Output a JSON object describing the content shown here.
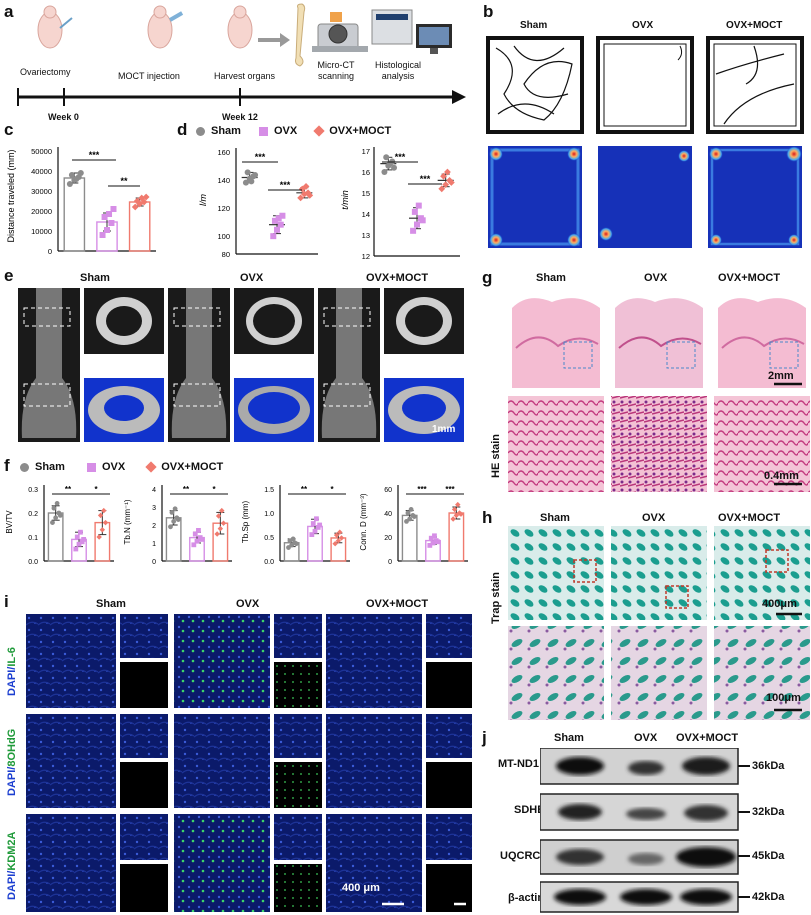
{
  "panels": {
    "a": {
      "letter": "a",
      "steps": [
        "Ovariectomy",
        "MOCT injection",
        "Harvest organs",
        "Micro-CT scanning",
        "Histological analysis"
      ],
      "weeks": [
        "Week 0",
        "Week 12"
      ]
    },
    "b": {
      "letter": "b",
      "groups": [
        "Sham",
        "OVX",
        "OVX+MOCT"
      ]
    },
    "c": {
      "letter": "c",
      "ylabel": "Distance traveled (mm)",
      "yticks": [
        "50000",
        "40000",
        "30000",
        "20000",
        "10000",
        "0"
      ],
      "sig": [
        "***",
        "**"
      ]
    },
    "d": {
      "letter": "d",
      "legend": [
        "Sham",
        "OVX",
        "OVX+MOCT"
      ],
      "left_ylabel": "l/m",
      "left_yticks": [
        "160",
        "140",
        "120",
        "100",
        "80"
      ],
      "right_ylabel": "t/min",
      "right_yticks": [
        "17",
        "16",
        "15",
        "14",
        "13",
        "12"
      ],
      "sig": [
        "***",
        "***",
        "***",
        "***"
      ]
    },
    "e": {
      "letter": "e",
      "groups": [
        "Sham",
        "OVX",
        "OVX+MOCT"
      ],
      "scale": "1mm"
    },
    "f": {
      "letter": "f",
      "legend": [
        "Sham",
        "OVX",
        "OVX+MOCT"
      ],
      "plots": [
        {
          "ylabel": "BV/TV",
          "yticks": [
            "0.3",
            "0.2",
            "0.1",
            "0.0"
          ],
          "sig": [
            "**",
            "*"
          ]
        },
        {
          "ylabel": "Tb.N (mm⁻¹)",
          "yticks": [
            "4",
            "3",
            "2",
            "1",
            "0"
          ],
          "sig": [
            "**",
            "*"
          ]
        },
        {
          "ylabel": "Tb.Sp (mm)",
          "yticks": [
            "1.5",
            "1.0",
            "0.5",
            "0.0"
          ],
          "sig": [
            "**",
            "*"
          ]
        },
        {
          "ylabel": "Conn. D (mm⁻³)",
          "yticks": [
            "60",
            "40",
            "20",
            "0"
          ],
          "sig": [
            "***",
            "***"
          ]
        }
      ]
    },
    "g": {
      "letter": "g",
      "groups": [
        "Sham",
        "OVX",
        "OVX+MOCT"
      ],
      "side_label": "HE stain",
      "scale_top": "2mm",
      "scale_bottom": "0.4mm"
    },
    "h": {
      "letter": "h",
      "groups": [
        "Sham",
        "OVX",
        "OVX+MOCT"
      ],
      "side_label": "Trap stain",
      "scale_top": "400μm",
      "scale_bottom": "100μm"
    },
    "i": {
      "letter": "i",
      "groups": [
        "Sham",
        "OVX",
        "OVX+MOCT"
      ],
      "row_labels": [
        {
          "prefix": "DAPI/",
          "marker": "IL-6"
        },
        {
          "prefix": "DAPI/",
          "marker": "8OHdG"
        },
        {
          "prefix": "DAPI/",
          "marker": "KDM2A"
        }
      ],
      "scale": "400 μm"
    },
    "j": {
      "letter": "j",
      "groups": [
        "Sham",
        "OVX",
        "OVX+MOCT"
      ],
      "rows": [
        {
          "protein": "MT-ND1",
          "kda": "36kDa"
        },
        {
          "protein": "SDHB",
          "kda": "32kDa"
        },
        {
          "protein": "UQCRC1",
          "kda": "45kDa"
        },
        {
          "protein": "β-actin",
          "kda": "42kDa"
        }
      ]
    }
  },
  "colors": {
    "sham": "#8c8c8c",
    "ovx": "#d68ee6",
    "moct": "#f07a6e"
  },
  "chart_data": [
    {
      "type": "scatter",
      "panel": "c",
      "categories": [
        "Sham",
        "OVX",
        "OVX+MOCT"
      ],
      "ylabel": "Distance traveled (mm)",
      "ylim": [
        0,
        50000
      ],
      "means": [
        36500,
        14500,
        24500
      ],
      "sd": [
        2500,
        4500,
        2000
      ],
      "points": [
        [
          33500,
          35500,
          37000,
          38000,
          36000,
          39000
        ],
        [
          8000,
          10500,
          14000,
          17000,
          18500,
          21000
        ],
        [
          22000,
          23500,
          24500,
          25000,
          26500,
          27000
        ]
      ]
    },
    {
      "type": "scatter",
      "panel": "d-left",
      "categories": [
        "Sham",
        "OVX",
        "OVX+MOCT"
      ],
      "ylabel": "l/m",
      "ylim": [
        80,
        160
      ],
      "means": [
        140,
        103,
        128
      ],
      "sd": [
        4,
        7,
        4
      ],
      "points": [
        [
          136,
          139,
          141,
          144,
          137,
          142
        ],
        [
          94,
          99,
          103,
          106,
          108,
          110
        ],
        [
          124,
          127,
          128,
          131,
          133,
          126
        ]
      ]
    },
    {
      "type": "scatter",
      "panel": "d-right",
      "categories": [
        "Sham",
        "OVX",
        "OVX+MOCT"
      ],
      "ylabel": "t/min",
      "ylim": [
        12,
        17
      ],
      "means": [
        16.4,
        13.8,
        15.6
      ],
      "sd": [
        0.3,
        0.5,
        0.3
      ],
      "points": [
        [
          16.0,
          16.3,
          16.5,
          16.7,
          16.4,
          16.2
        ],
        [
          13.2,
          13.5,
          13.8,
          14.1,
          14.4,
          13.7
        ],
        [
          15.2,
          15.4,
          15.6,
          15.8,
          16.0,
          15.5
        ]
      ]
    },
    {
      "type": "bar",
      "panel": "f1",
      "categories": [
        "Sham",
        "OVX",
        "OVX+MOCT"
      ],
      "ylabel": "BV/TV",
      "ylim": [
        0,
        0.3
      ],
      "values": [
        0.2,
        0.09,
        0.16
      ],
      "sd": [
        0.03,
        0.03,
        0.05
      ],
      "points": [
        [
          0.16,
          0.18,
          0.2,
          0.22,
          0.24,
          0.19
        ],
        [
          0.05,
          0.07,
          0.08,
          0.1,
          0.12,
          0.09
        ],
        [
          0.1,
          0.13,
          0.16,
          0.19,
          0.21
        ]
      ]
    },
    {
      "type": "bar",
      "panel": "f2",
      "categories": [
        "Sham",
        "OVX",
        "OVX+MOCT"
      ],
      "ylabel": "Tb.N (mm⁻¹)",
      "ylim": [
        0,
        4
      ],
      "values": [
        2.4,
        1.3,
        2.1
      ],
      "sd": [
        0.4,
        0.3,
        0.6
      ],
      "points": [
        [
          1.9,
          2.2,
          2.4,
          2.7,
          2.9,
          2.3
        ],
        [
          0.9,
          1.1,
          1.3,
          1.5,
          1.7,
          1.2
        ],
        [
          1.5,
          1.8,
          2.1,
          2.5,
          2.8
        ]
      ]
    },
    {
      "type": "bar",
      "panel": "f3",
      "categories": [
        "Sham",
        "OVX",
        "OVX+MOCT"
      ],
      "ylabel": "Tb.Sp (mm)",
      "ylim": [
        0,
        1.5
      ],
      "values": [
        0.38,
        0.72,
        0.48
      ],
      "sd": [
        0.08,
        0.15,
        0.1
      ],
      "points": [
        [
          0.28,
          0.33,
          0.38,
          0.42,
          0.46,
          0.36
        ],
        [
          0.55,
          0.62,
          0.7,
          0.78,
          0.88,
          0.75
        ],
        [
          0.36,
          0.42,
          0.48,
          0.54,
          0.6
        ]
      ]
    },
    {
      "type": "bar",
      "panel": "f4",
      "categories": [
        "Sham",
        "OVX",
        "OVX+MOCT"
      ],
      "ylabel": "Conn. D (mm⁻³)",
      "ylim": [
        0,
        60
      ],
      "values": [
        38,
        17,
        40
      ],
      "sd": [
        4,
        3,
        5
      ],
      "points": [
        [
          33,
          35,
          38,
          40,
          43,
          37
        ],
        [
          13,
          15,
          17,
          19,
          21,
          16
        ],
        [
          35,
          38,
          40,
          43,
          47,
          39
        ]
      ]
    }
  ]
}
